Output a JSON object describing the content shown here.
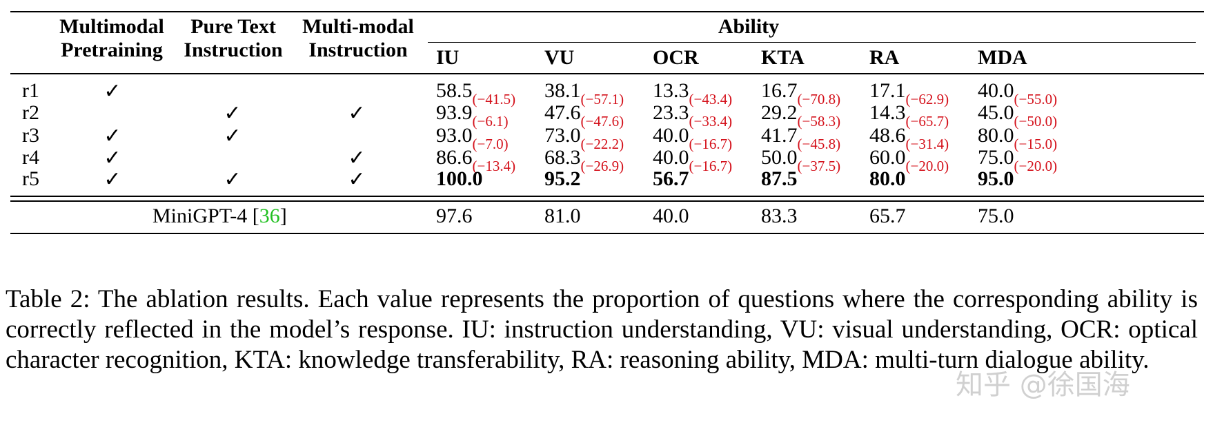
{
  "table": {
    "col_headers": [
      {
        "line1": "Multimodal",
        "line2": "Pretraining"
      },
      {
        "line1": "Pure Text",
        "line2": "Instruction"
      },
      {
        "line1": "Multi-modal",
        "line2": "Instruction"
      }
    ],
    "ability_header": "Ability",
    "ability_cols": [
      "IU",
      "VU",
      "OCR",
      "KTA",
      "RA",
      "MDA"
    ],
    "rows": [
      {
        "label": "r1",
        "pretraining": "✓",
        "pure_text": "",
        "multimodal_instruction": "",
        "values": [
          {
            "v": "58.5",
            "d": "(−41.5)"
          },
          {
            "v": "38.1",
            "d": "(−57.1)"
          },
          {
            "v": "13.3",
            "d": "(−43.4)"
          },
          {
            "v": "16.7",
            "d": "(−70.8)"
          },
          {
            "v": "17.1",
            "d": "(−62.9)"
          },
          {
            "v": "40.0",
            "d": "(−55.0)"
          }
        ]
      },
      {
        "label": "r2",
        "pretraining": "",
        "pure_text": "✓",
        "multimodal_instruction": "✓",
        "values": [
          {
            "v": "93.9",
            "d": "(−6.1)"
          },
          {
            "v": "47.6",
            "d": "(−47.6)"
          },
          {
            "v": "23.3",
            "d": "(−33.4)"
          },
          {
            "v": "29.2",
            "d": "(−58.3)"
          },
          {
            "v": "14.3",
            "d": "(−65.7)"
          },
          {
            "v": "45.0",
            "d": "(−50.0)"
          }
        ]
      },
      {
        "label": "r3",
        "pretraining": "✓",
        "pure_text": "✓",
        "multimodal_instruction": "",
        "values": [
          {
            "v": "93.0",
            "d": "(−7.0)"
          },
          {
            "v": "73.0",
            "d": "(−22.2)"
          },
          {
            "v": "40.0",
            "d": "(−16.7)"
          },
          {
            "v": "41.7",
            "d": "(−45.8)"
          },
          {
            "v": "48.6",
            "d": "(−31.4)"
          },
          {
            "v": "80.0",
            "d": "(−15.0)"
          }
        ]
      },
      {
        "label": "r4",
        "pretraining": "✓",
        "pure_text": "",
        "multimodal_instruction": "✓",
        "values": [
          {
            "v": "86.6",
            "d": "(−13.4)"
          },
          {
            "v": "68.3",
            "d": "(−26.9)"
          },
          {
            "v": "40.0",
            "d": "(−16.7)"
          },
          {
            "v": "50.0",
            "d": "(−37.5)"
          },
          {
            "v": "60.0",
            "d": "(−20.0)"
          },
          {
            "v": "75.0",
            "d": "(−20.0)"
          }
        ]
      },
      {
        "label": "r5",
        "pretraining": "✓",
        "pure_text": "✓",
        "multimodal_instruction": "✓",
        "values": [
          {
            "v": "100.0"
          },
          {
            "v": "95.2"
          },
          {
            "v": "56.7"
          },
          {
            "v": "87.5"
          },
          {
            "v": "80.0"
          },
          {
            "v": "95.0"
          }
        ]
      }
    ],
    "baseline": {
      "name": "MiniGPT-4",
      "citation": "36",
      "values": [
        "97.6",
        "81.0",
        "40.0",
        "83.3",
        "65.7",
        "75.0"
      ]
    }
  },
  "caption": "Table 2: The ablation results. Each value represents the proportion of questions where the corresponding ability is correctly reflected in the model’s response. IU: instruction understanding, VU: visual understanding, OCR: optical character recognition, KTA: knowledge transferability, RA: reasoning ability, MDA: multi-turn dialogue ability.",
  "watermark": "知乎 @徐国海",
  "colors": {
    "delta_red": "#d4101a",
    "citation_green": "#21c021"
  }
}
